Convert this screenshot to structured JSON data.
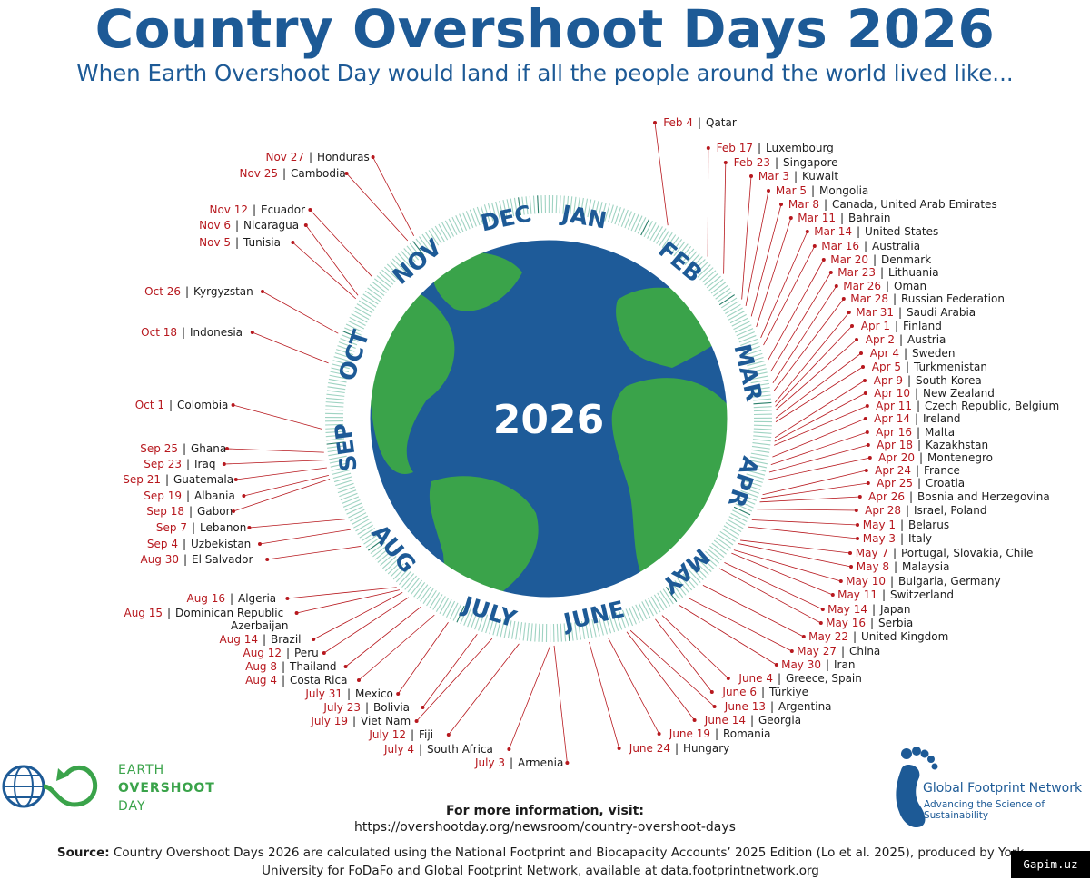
{
  "header": {
    "title": "Country Overshoot Days 2026",
    "subtitle": "When Earth Overshoot Day would land if all the people around the world lived like..."
  },
  "center_year": "2026",
  "months": [
    "JAN",
    "FEB",
    "MAR",
    "APR",
    "MAY",
    "JUNE",
    "JULY",
    "AUG",
    "SEP",
    "OCT",
    "NOV",
    "DEC"
  ],
  "colors": {
    "title": "#1d5a96",
    "date": "#b7181e",
    "ocean": "#1e5b99",
    "land": "#3aa34a",
    "leader": "#b7181e",
    "ring_tick": "#8ec9b8"
  },
  "countries": [
    {
      "date": "Feb 4",
      "country": "Qatar"
    },
    {
      "date": "Feb 17",
      "country": "Luxembourg"
    },
    {
      "date": "Feb 23",
      "country": "Singapore"
    },
    {
      "date": "Mar 3",
      "country": "Kuwait"
    },
    {
      "date": "Mar 5",
      "country": "Mongolia"
    },
    {
      "date": "Mar 8",
      "country": "Canada, United Arab Emirates"
    },
    {
      "date": "Mar 11",
      "country": "Bahrain"
    },
    {
      "date": "Mar 14",
      "country": "United States"
    },
    {
      "date": "Mar 16",
      "country": "Australia"
    },
    {
      "date": "Mar 20",
      "country": "Denmark"
    },
    {
      "date": "Mar 23",
      "country": "Lithuania"
    },
    {
      "date": "Mar 26",
      "country": "Oman"
    },
    {
      "date": "Mar 28",
      "country": "Russian Federation"
    },
    {
      "date": "Mar 31",
      "country": "Saudi Arabia"
    },
    {
      "date": "Apr 1",
      "country": "Finland"
    },
    {
      "date": "Apr 2",
      "country": "Austria"
    },
    {
      "date": "Apr 4",
      "country": "Sweden"
    },
    {
      "date": "Apr 5",
      "country": "Turkmenistan"
    },
    {
      "date": "Apr 9",
      "country": "South Korea"
    },
    {
      "date": "Apr 10",
      "country": "New Zealand"
    },
    {
      "date": "Apr 11",
      "country": "Czech Republic, Belgium"
    },
    {
      "date": "Apr 14",
      "country": "Ireland"
    },
    {
      "date": "Apr 16",
      "country": "Malta"
    },
    {
      "date": "Apr 18",
      "country": "Kazakhstan"
    },
    {
      "date": "Apr 20",
      "country": "Montenegro"
    },
    {
      "date": "Apr 24",
      "country": "France"
    },
    {
      "date": "Apr 25",
      "country": "Croatia"
    },
    {
      "date": "Apr 26",
      "country": "Bosnia and Herzegovina"
    },
    {
      "date": "Apr 28",
      "country": "Israel, Poland"
    },
    {
      "date": "May 1",
      "country": "Belarus"
    },
    {
      "date": "May 3",
      "country": "Italy"
    },
    {
      "date": "May 7",
      "country": "Portugal, Slovakia, Chile"
    },
    {
      "date": "May 8",
      "country": "Malaysia"
    },
    {
      "date": "May 10",
      "country": "Bulgaria, Germany"
    },
    {
      "date": "May 11",
      "country": "Switzerland"
    },
    {
      "date": "May 14",
      "country": "Japan"
    },
    {
      "date": "May 16",
      "country": "Serbia"
    },
    {
      "date": "May 22",
      "country": "United Kingdom"
    },
    {
      "date": "May 27",
      "country": "China"
    },
    {
      "date": "May 30",
      "country": "Iran"
    },
    {
      "date": "June 4",
      "country": "Greece, Spain"
    },
    {
      "date": "June 6",
      "country": "Türkiye"
    },
    {
      "date": "June 13",
      "country": "Argentina"
    },
    {
      "date": "June 14",
      "country": "Georgia"
    },
    {
      "date": "June 19",
      "country": "Romania"
    },
    {
      "date": "June 24",
      "country": "Hungary"
    },
    {
      "date": "July 3",
      "country": "Armenia"
    },
    {
      "date": "July 4",
      "country": "South Africa"
    },
    {
      "date": "July 12",
      "country": "Fiji"
    },
    {
      "date": "July 19",
      "country": "Viet Nam"
    },
    {
      "date": "July 23",
      "country": "Bolivia"
    },
    {
      "date": "July 31",
      "country": "Mexico"
    },
    {
      "date": "Aug 4",
      "country": "Costa Rica"
    },
    {
      "date": "Aug 8",
      "country": "Thailand"
    },
    {
      "date": "Aug 12",
      "country": "Peru"
    },
    {
      "date": "Aug 14",
      "country": "Brazil"
    },
    {
      "date": "Aug 15",
      "country": "Dominican Republic"
    },
    {
      "date": "",
      "country": "Azerbaijan"
    },
    {
      "date": "Aug 16",
      "country": "Algeria"
    },
    {
      "date": "Aug 30",
      "country": "El Salvador"
    },
    {
      "date": "Sep 4",
      "country": "Uzbekistan"
    },
    {
      "date": "Sep 7",
      "country": "Lebanon"
    },
    {
      "date": "Sep 18",
      "country": "Gabon"
    },
    {
      "date": "Sep 19",
      "country": "Albania"
    },
    {
      "date": "Sep 21",
      "country": "Guatemala"
    },
    {
      "date": "Sep 23",
      "country": "Iraq"
    },
    {
      "date": "Sep 25",
      "country": "Ghana"
    },
    {
      "date": "Oct 1",
      "country": "Colombia"
    },
    {
      "date": "Oct 18",
      "country": "Indonesia"
    },
    {
      "date": "Oct 26",
      "country": "Kyrgyzstan"
    },
    {
      "date": "Nov 5",
      "country": "Tunisia"
    },
    {
      "date": "Nov 6",
      "country": "Nicaragua"
    },
    {
      "date": "Nov 12",
      "country": "Ecuador"
    },
    {
      "date": "Nov 25",
      "country": "Cambodia"
    },
    {
      "date": "Nov 27",
      "country": "Honduras"
    }
  ],
  "info": {
    "heading": "For more information, visit:",
    "url": "https://overshootday.org/newsroom/country-overshoot-days"
  },
  "source": {
    "label": "Source:",
    "text": "Country Overshoot Days 2026 are calculated using the National Footprint and Biocapacity Accounts’ 2025 Edition (Lo et al. 2025), produced by York University for FoDaFo and Global Footprint Network, available at data.footprintnetwork.org"
  },
  "logos": {
    "eod_line1": "EARTH",
    "eod_line2": "OVERSHOOT",
    "eod_line3": "DAY",
    "gfn_name": "Global Footprint Network",
    "gfn_tagline": "Advancing the Science of Sustainability"
  },
  "watermark": "Gapim.uz"
}
